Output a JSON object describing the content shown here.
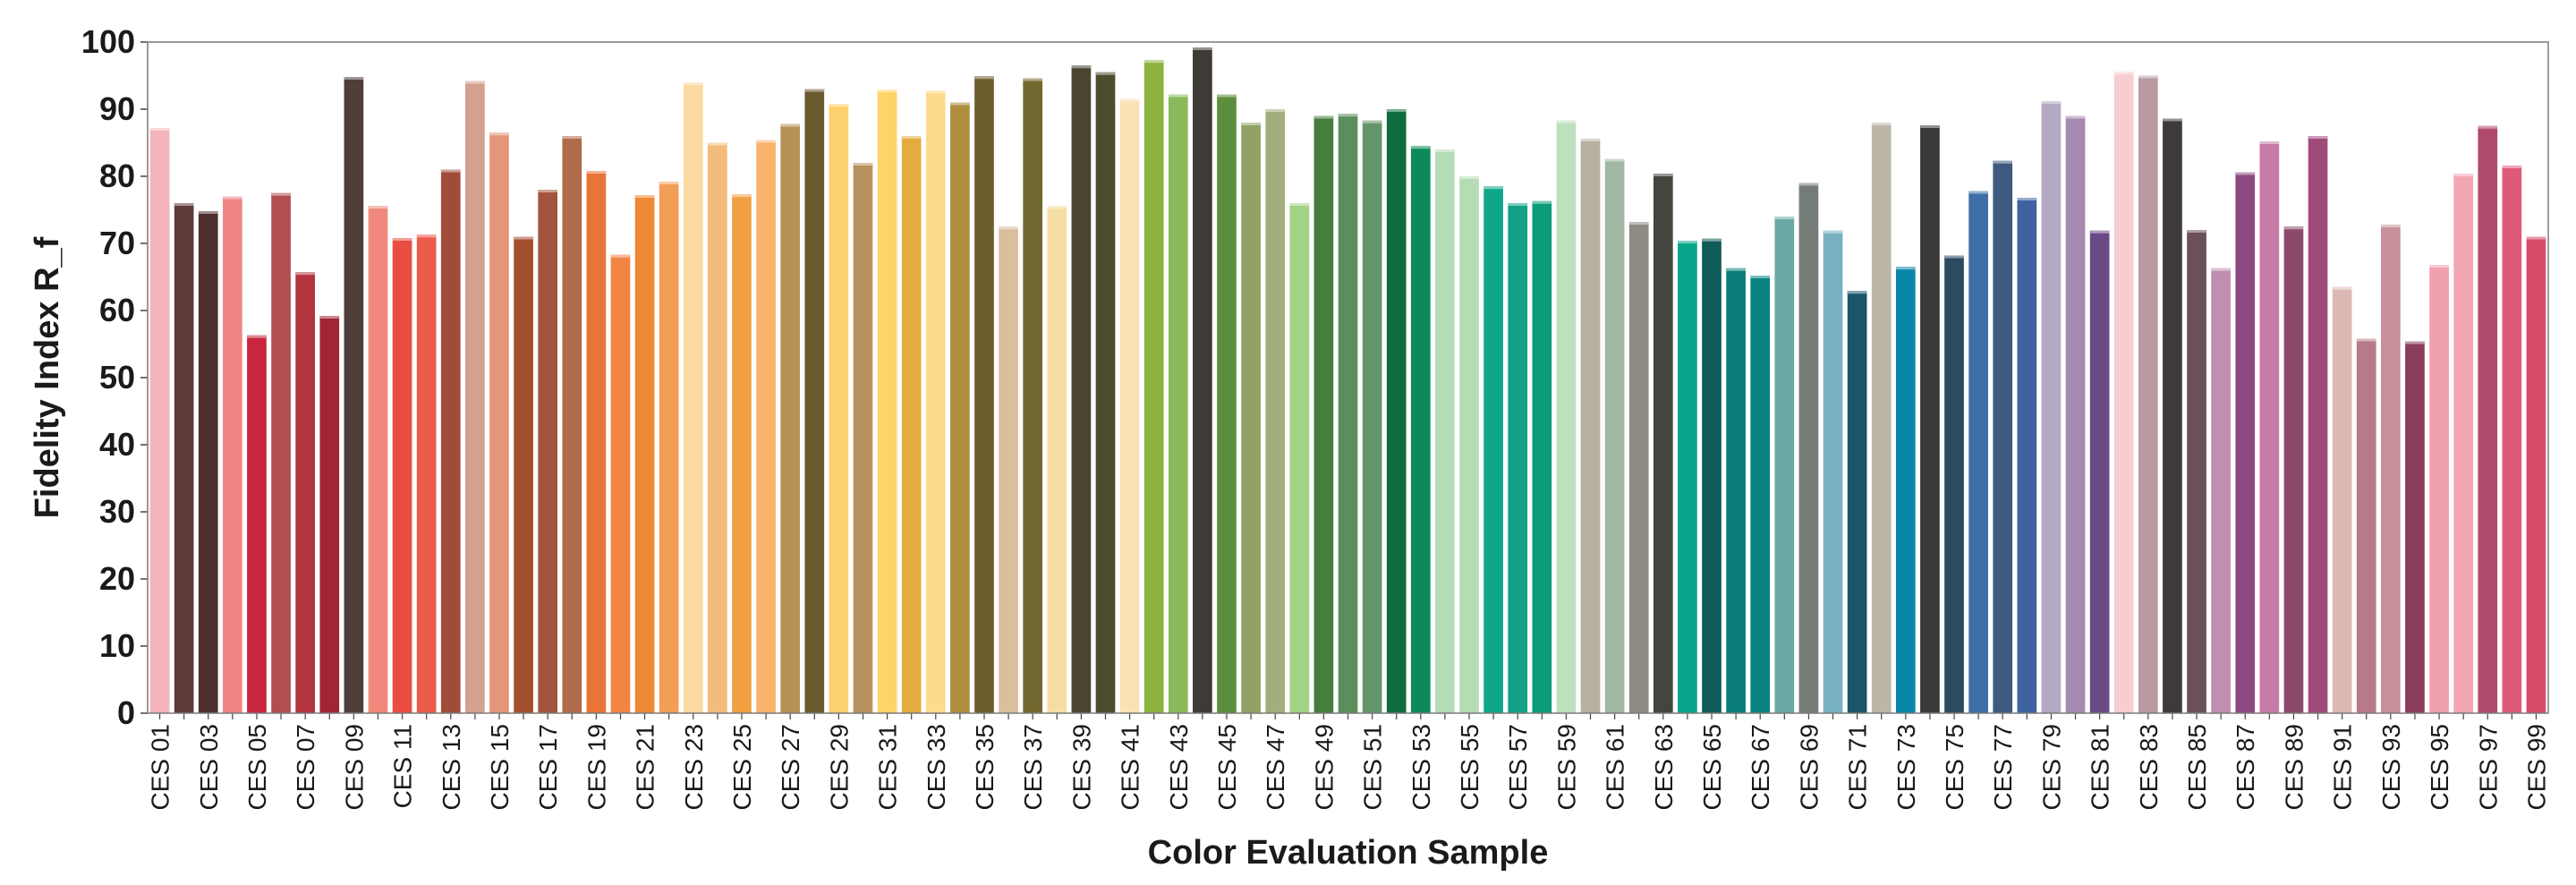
{
  "chart_data": {
    "type": "bar",
    "title": "",
    "xlabel": "Color Evaluation Sample",
    "ylabel": "Fidelity Index R_f",
    "ylim": [
      0,
      100
    ],
    "yticks": [
      0,
      10,
      20,
      30,
      40,
      50,
      60,
      70,
      80,
      90,
      100
    ],
    "grid": false,
    "legend": "none",
    "tick_label_every": 2,
    "categories": [
      "CES 01",
      "CES 02",
      "CES 03",
      "CES 04",
      "CES 05",
      "CES 06",
      "CES 07",
      "CES 08",
      "CES 09",
      "CES 10",
      "CES 11",
      "CES 12",
      "CES 13",
      "CES 14",
      "CES 15",
      "CES 16",
      "CES 17",
      "CES 18",
      "CES 19",
      "CES 20",
      "CES 21",
      "CES 22",
      "CES 23",
      "CES 24",
      "CES 25",
      "CES 26",
      "CES 27",
      "CES 28",
      "CES 29",
      "CES 30",
      "CES 31",
      "CES 32",
      "CES 33",
      "CES 34",
      "CES 35",
      "CES 36",
      "CES 37",
      "CES 38",
      "CES 39",
      "CES 40",
      "CES 41",
      "CES 42",
      "CES 43",
      "CES 44",
      "CES 45",
      "CES 46",
      "CES 47",
      "CES 48",
      "CES 49",
      "CES 50",
      "CES 51",
      "CES 52",
      "CES 53",
      "CES 54",
      "CES 55",
      "CES 56",
      "CES 57",
      "CES 58",
      "CES 59",
      "CES 60",
      "CES 61",
      "CES 62",
      "CES 63",
      "CES 64",
      "CES 65",
      "CES 66",
      "CES 67",
      "CES 68",
      "CES 69",
      "CES 70",
      "CES 71",
      "CES 72",
      "CES 73",
      "CES 74",
      "CES 75",
      "CES 76",
      "CES 77",
      "CES 78",
      "CES 79",
      "CES 80",
      "CES 81",
      "CES 82",
      "CES 83",
      "CES 84",
      "CES 85",
      "CES 86",
      "CES 87",
      "CES 88",
      "CES 89",
      "CES 90",
      "CES 91",
      "CES 92",
      "CES 93",
      "CES 94",
      "CES 95",
      "CES 96",
      "CES 97",
      "CES 98",
      "CES 99"
    ],
    "values": [
      87.2,
      76.0,
      74.8,
      77.0,
      56.3,
      77.5,
      65.7,
      59.2,
      94.8,
      75.6,
      70.8,
      71.3,
      81.0,
      94.2,
      86.5,
      71.0,
      78.0,
      86.0,
      80.8,
      68.3,
      77.2,
      79.2,
      94.0,
      85.0,
      77.3,
      85.4,
      87.8,
      93.0,
      90.8,
      82.0,
      92.9,
      86.0,
      92.8,
      91.0,
      94.9,
      72.5,
      94.6,
      75.6,
      96.5,
      95.5,
      91.6,
      97.3,
      92.2,
      99.2,
      92.2,
      88.0,
      90.0,
      76.0,
      89.0,
      89.3,
      88.3,
      90.0,
      84.5,
      84.0,
      80.0,
      78.5,
      76.0,
      76.3,
      88.3,
      85.6,
      82.6,
      73.2,
      80.4,
      70.4,
      70.7,
      66.3,
      65.2,
      74.0,
      79.0,
      71.9,
      62.9,
      88.0,
      66.5,
      87.6,
      68.2,
      77.8,
      82.3,
      76.8,
      91.2,
      89.0,
      71.9,
      95.6,
      95.0,
      88.6,
      72.0,
      66.3,
      80.6,
      85.2,
      72.5,
      86.0,
      63.5,
      55.8,
      72.8,
      55.4,
      66.8,
      80.4,
      87.5,
      81.6,
      71.0
    ],
    "colors": [
      "#f3b4bc",
      "#5e3a3a",
      "#4e2f2f",
      "#f08585",
      "#c8263e",
      "#b04e50",
      "#b2343f",
      "#a02633",
      "#4e3e3a",
      "#f0897c",
      "#e94c41",
      "#eb5b4b",
      "#a04c38",
      "#d4a090",
      "#e59579",
      "#a3502f",
      "#a2553e",
      "#b06b4a",
      "#e97437",
      "#f38544",
      "#ef8935",
      "#f29e57",
      "#fcd9a0",
      "#f4bc7b",
      "#f0a040",
      "#f7b26b",
      "#b59255",
      "#6a5a30",
      "#fed170",
      "#b8925e",
      "#fed468",
      "#e4ac40",
      "#fddb8e",
      "#ae8e3e",
      "#6d5c2e",
      "#d9bf9e",
      "#72672e",
      "#f4dea3",
      "#4a4530",
      "#4c4c2f",
      "#f9e2b5",
      "#8cb23f",
      "#8ab95a",
      "#3e3a35",
      "#5c8e3d",
      "#91a267",
      "#a2af7c",
      "#a2d385",
      "#467e3c",
      "#5a8e5a",
      "#64966a",
      "#0e6d3c",
      "#0e8a5a",
      "#b5dcb4",
      "#b6dcb5",
      "#0ea68a",
      "#12a087",
      "#0c9b7a",
      "#bfe0be",
      "#b8b0a0",
      "#a1b8a4",
      "#8f8a82",
      "#43453e",
      "#07a58a",
      "#0f5b58",
      "#0a7d7a",
      "#0a8381",
      "#6aa8a5",
      "#757b76",
      "#78b2c2",
      "#1b5568",
      "#bcb6a8",
      "#0a86aa",
      "#3a3a3a",
      "#2c4a60",
      "#3e6ea6",
      "#3e5a80",
      "#3e63a0",
      "#b5a8c4",
      "#a68ab0",
      "#6a4a86",
      "#f7cdd0",
      "#b89aa0",
      "#3e3a3a",
      "#6a5058",
      "#c08eb0",
      "#8e4a80",
      "#c87aa8",
      "#8c4a6a",
      "#a04a7a",
      "#dcb8b4",
      "#b87a88",
      "#c8909a",
      "#8a3c5a",
      "#f0a0ae",
      "#f2a6b2",
      "#b04a6a",
      "#de5a7a",
      "#d84a6a"
    ],
    "cap_lighter": true
  }
}
